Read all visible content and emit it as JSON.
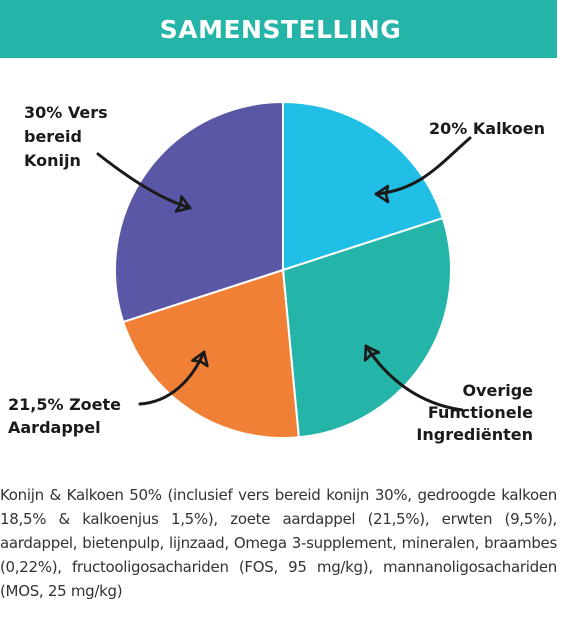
{
  "header": {
    "title": "SAMENSTELLING"
  },
  "chart_data": {
    "type": "pie",
    "start": "top",
    "direction": "clockwise",
    "slices": [
      {
        "label": "20% Kalkoen",
        "label_lines": [
          "20% Kalkoen"
        ],
        "value": 20,
        "color": "#21bfe6"
      },
      {
        "label": "Overige Functionele Ingrediënten",
        "label_lines": [
          "Overige",
          "Functionele",
          "Ingrediënten"
        ],
        "value": 28.5,
        "color": "#25b5a8"
      },
      {
        "label": "21,5% Zoete Aardappel",
        "label_lines": [
          "21,5% Zoete",
          "Aardappel"
        ],
        "value": 21.5,
        "color": "#f08036"
      },
      {
        "label": "30% Vers bereid Konijn",
        "label_lines": [
          "30% Vers",
          "bereid",
          "Konijn"
        ],
        "value": 30,
        "color": "#5a58a6"
      }
    ],
    "legend": "none"
  },
  "ingredients": {
    "text": "Konijn & Kalkoen 50% (inclusief vers bereid konijn 30%, gedroogde kalkoen 18,5% & kalkoenjus 1,5%), zoete aardappel (21,5%), erwten (9,5%), aardappel, bietenpulp, lijnzaad, Omega 3-supplement, mineralen, braambes (0,22%), fructooligosachariden (FOS, 95 mg/kg), mannanoligosachariden (MOS, 25 mg/kg)"
  }
}
